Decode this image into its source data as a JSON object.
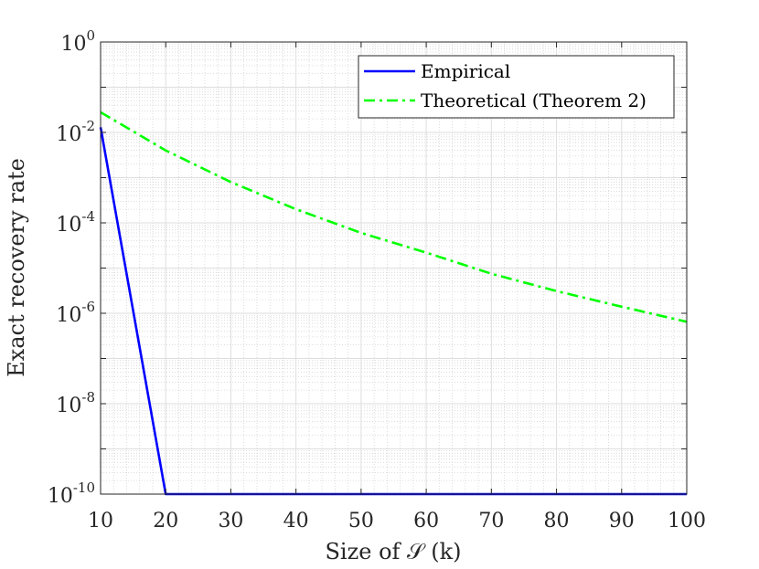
{
  "chart_data": {
    "type": "line",
    "xlabel": "Size of 𝒮 (k)",
    "ylabel": "Exact recovery rate",
    "xlim": [
      10,
      100
    ],
    "ylim": [
      1e-10,
      1
    ],
    "yscale": "log",
    "grid": true,
    "minor_grid": true,
    "legend_position": "top-right",
    "x_ticks": [
      10,
      20,
      30,
      40,
      50,
      60,
      70,
      80,
      90,
      100
    ],
    "y_ticks": [
      {
        "base": "10",
        "exp": "0",
        "value": 1
      },
      {
        "base": "10",
        "exp": "-2",
        "value": 0.01
      },
      {
        "base": "10",
        "exp": "-4",
        "value": 0.0001
      },
      {
        "base": "10",
        "exp": "-6",
        "value": 1e-06
      },
      {
        "base": "10",
        "exp": "-8",
        "value": 1e-08
      },
      {
        "base": "10",
        "exp": "-10",
        "value": 1e-10
      }
    ],
    "series": [
      {
        "name": "Empirical",
        "color": "#0000ff",
        "style": "solid",
        "x": [
          10,
          20,
          30,
          40,
          50,
          60,
          70,
          80,
          90,
          100
        ],
        "y": [
          0.013,
          1e-10,
          1e-10,
          1e-10,
          1e-10,
          1e-10,
          1e-10,
          1e-10,
          1e-10,
          1e-10
        ]
      },
      {
        "name": "Theoretical (Theorem 2)",
        "color": "#00ff00",
        "style": "dashdot",
        "x": [
          10,
          20,
          30,
          40,
          50,
          60,
          70,
          80,
          90,
          100
        ],
        "y": [
          0.028,
          0.004,
          0.0008,
          0.0002,
          6e-05,
          2.2e-05,
          7.5e-06,
          3.1e-06,
          1.4e-06,
          6.5e-07
        ]
      }
    ]
  }
}
